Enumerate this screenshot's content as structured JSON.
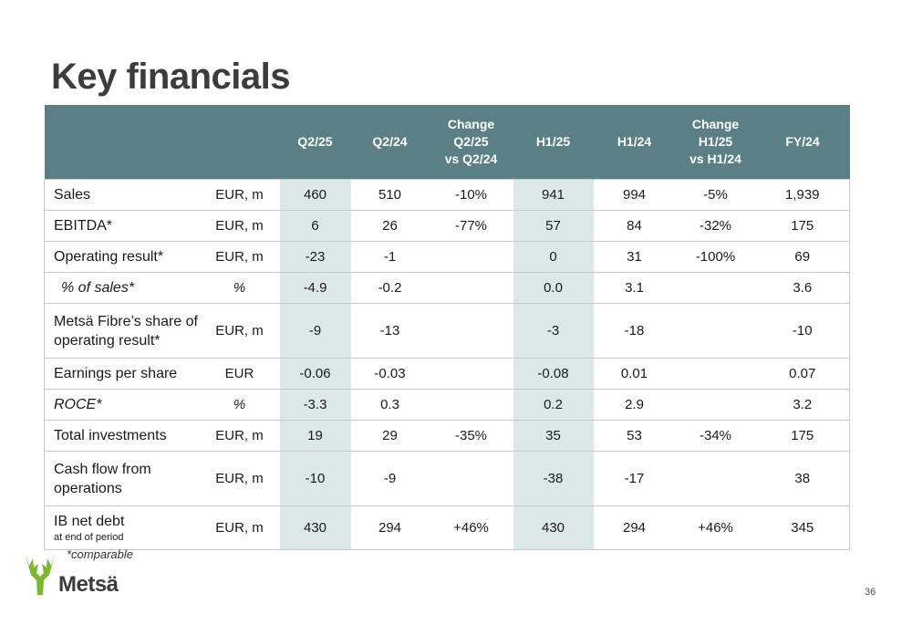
{
  "title": "Key financials",
  "header": {
    "q2_25": "Q2/25",
    "q2_24": "Q2/24",
    "chg_q": [
      "Change",
      "Q2/25",
      "vs Q2/24"
    ],
    "h1_25": "H1/25",
    "h1_24": "H1/24",
    "chg_h": [
      "Change",
      "H1/25",
      "vs H1/24"
    ],
    "fy24": "FY/24"
  },
  "rows": [
    {
      "label": "Sales",
      "unit": "EUR, m",
      "q2_25": "460",
      "q2_24": "510",
      "chg_q": "-10%",
      "h1_25": "941",
      "h1_24": "994",
      "chg_h": "-5%",
      "fy24": "1,939"
    },
    {
      "label": "EBITDA*",
      "unit": "EUR, m",
      "q2_25": "6",
      "q2_24": "26",
      "chg_q": "-77%",
      "h1_25": "57",
      "h1_24": "84",
      "chg_h": "-32%",
      "fy24": "175"
    },
    {
      "label": "Operating result*",
      "unit": "EUR, m",
      "q2_25": "-23",
      "q2_24": "-1",
      "chg_q": "",
      "h1_25": "0",
      "h1_24": "31",
      "chg_h": "-100%",
      "fy24": "69"
    },
    {
      "label": "% of sales*",
      "unit": "%",
      "q2_25": "-4.9",
      "q2_24": "-0.2",
      "chg_q": "",
      "h1_25": "0.0",
      "h1_24": "3.1",
      "chg_h": "",
      "fy24": "3.6"
    },
    {
      "label_lines": [
        "Metsä Fibre’s share of",
        "operating result*"
      ],
      "unit": "EUR, m",
      "q2_25": "-9",
      "q2_24": "-13",
      "chg_q": "",
      "h1_25": "-3",
      "h1_24": "-18",
      "chg_h": "",
      "fy24": "-10"
    },
    {
      "label": "Earnings per share",
      "unit": "EUR",
      "q2_25": "-0.06",
      "q2_24": "-0.03",
      "chg_q": "",
      "h1_25": "-0.08",
      "h1_24": "0.01",
      "chg_h": "",
      "fy24": "0.07"
    },
    {
      "label": "ROCE*",
      "unit": "%",
      "q2_25": "-3.3",
      "q2_24": "0.3",
      "chg_q": "",
      "h1_25": "0.2",
      "h1_24": "2.9",
      "chg_h": "",
      "fy24": "3.2"
    },
    {
      "label": "Total investments",
      "unit": "EUR, m",
      "q2_25": "19",
      "q2_24": "29",
      "chg_q": "-35%",
      "h1_25": "35",
      "h1_24": "53",
      "chg_h": "-34%",
      "fy24": "175"
    },
    {
      "label_lines": [
        "Cash flow from",
        "operations"
      ],
      "unit": "EUR, m",
      "q2_25": "-10",
      "q2_24": "-9",
      "chg_q": "",
      "h1_25": "-38",
      "h1_24": "-17",
      "chg_h": "",
      "fy24": "38"
    },
    {
      "label": "IB net debt",
      "sublabel": "at end of period",
      "unit": "EUR, m",
      "q2_25": "430",
      "q2_24": "294",
      "chg_q": "+46%",
      "h1_25": "430",
      "h1_24": "294",
      "chg_h": "+46%",
      "fy24": "345"
    }
  ],
  "footnote": "*comparable",
  "logo": {
    "text": "Metsä",
    "icon": "antler-logo-icon",
    "color": "#7ab929"
  },
  "page_number": "36",
  "colors": {
    "header_bg": "#5a8085",
    "shade": "#dce8e8"
  }
}
